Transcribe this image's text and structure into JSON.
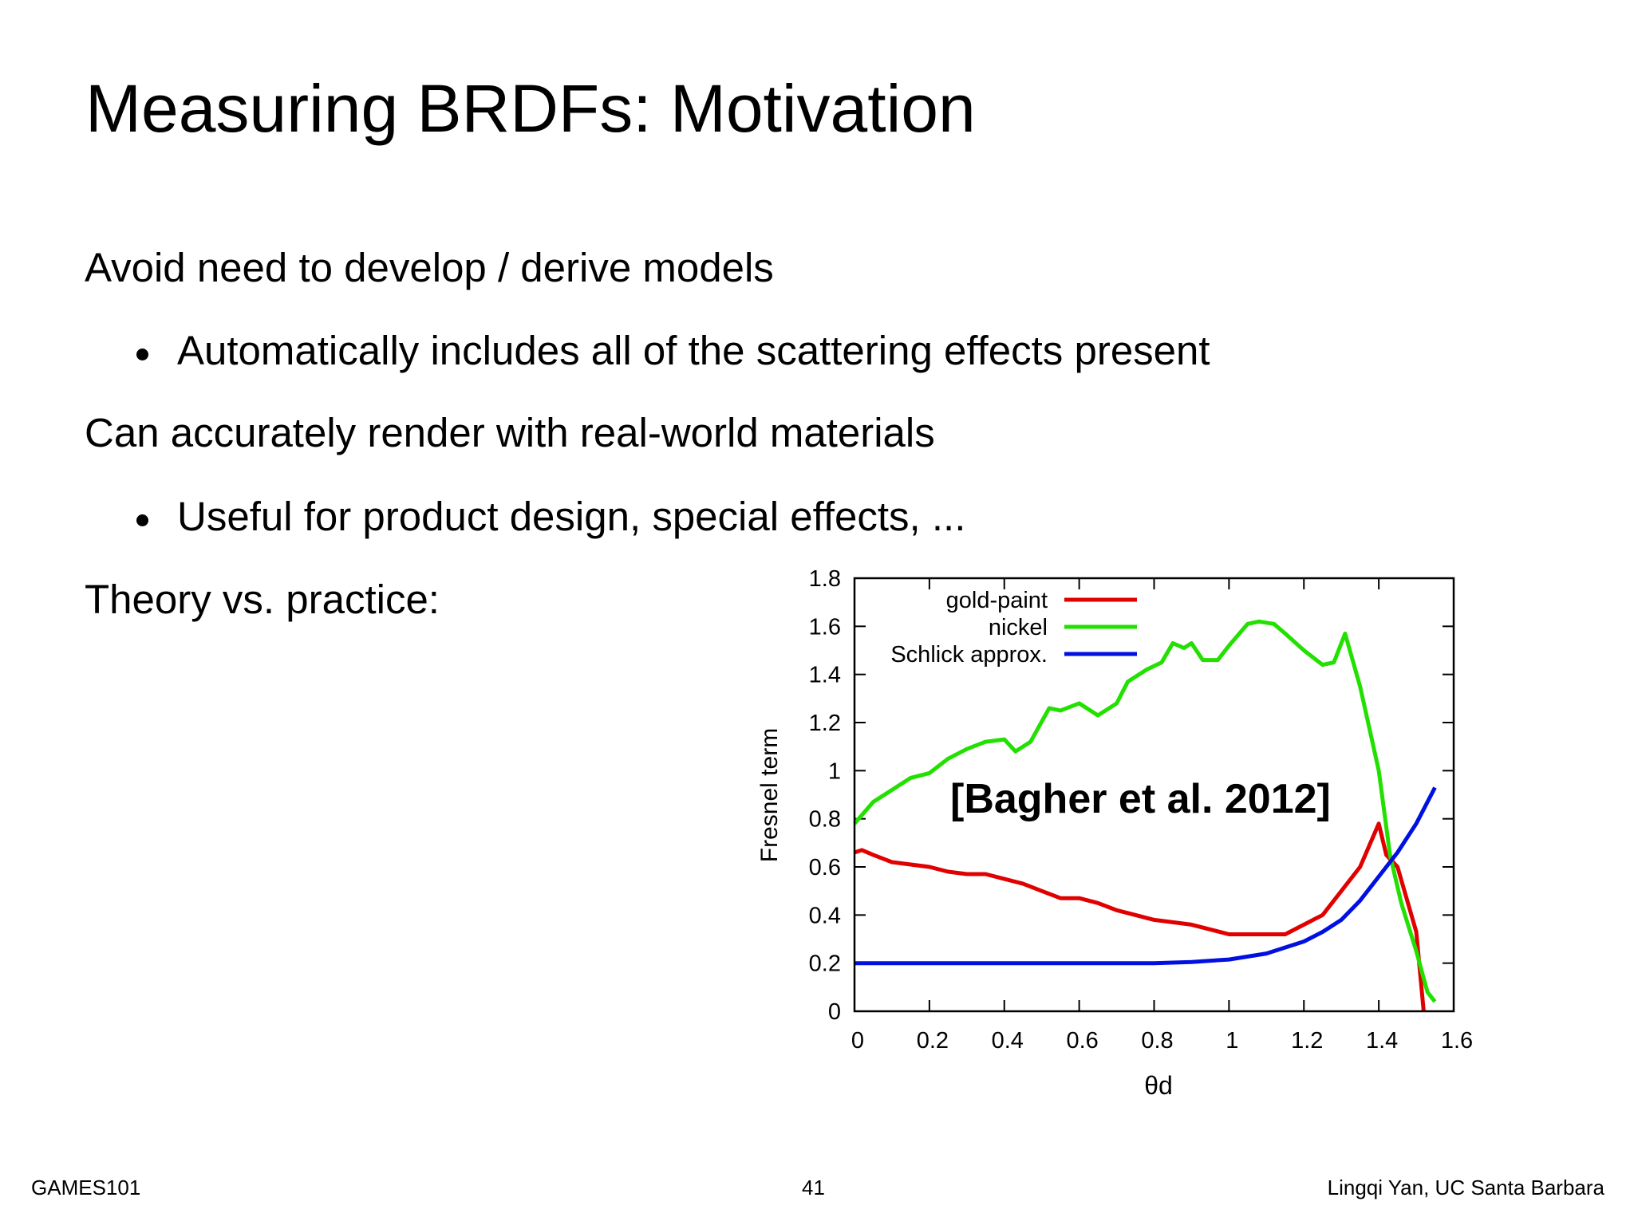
{
  "title": "Measuring BRDFs: Motivation",
  "points": [
    {
      "text": "Avoid need to develop / derive models",
      "sub": [
        "Automatically includes all of the scattering effects present"
      ]
    },
    {
      "text": "Can accurately render with real-world materials",
      "sub": [
        "Useful for product design, special effects, ..."
      ]
    },
    {
      "text": "Theory vs. practice:"
    }
  ],
  "footer": {
    "left": "GAMES101",
    "center": "41",
    "right": "Lingqi Yan, UC Santa Barbara"
  },
  "chart_data": {
    "type": "line",
    "xlabel": "θd",
    "ylabel": "Fresnel term",
    "annotation": "[Bagher et al. 2012]",
    "xlim": [
      0,
      1.6
    ],
    "ylim": [
      0,
      1.8
    ],
    "xticks": [
      0,
      0.2,
      0.4,
      0.6,
      0.8,
      1,
      1.2,
      1.4,
      1.6
    ],
    "yticks": [
      0,
      0.2,
      0.4,
      0.6,
      0.8,
      1,
      1.2,
      1.4,
      1.6,
      1.8
    ],
    "legend": "upper left",
    "series": [
      {
        "name": "gold-paint",
        "color": "#e00000",
        "x": [
          0,
          0.02,
          0.05,
          0.1,
          0.15,
          0.2,
          0.25,
          0.3,
          0.35,
          0.4,
          0.45,
          0.5,
          0.55,
          0.6,
          0.65,
          0.7,
          0.75,
          0.8,
          0.85,
          0.9,
          0.95,
          1.0,
          1.05,
          1.1,
          1.15,
          1.2,
          1.25,
          1.3,
          1.35,
          1.4,
          1.42,
          1.45,
          1.5,
          1.52
        ],
        "values": [
          0.66,
          0.67,
          0.65,
          0.62,
          0.61,
          0.6,
          0.58,
          0.57,
          0.57,
          0.55,
          0.53,
          0.5,
          0.47,
          0.47,
          0.45,
          0.42,
          0.4,
          0.38,
          0.37,
          0.36,
          0.34,
          0.32,
          0.32,
          0.32,
          0.32,
          0.36,
          0.4,
          0.5,
          0.6,
          0.78,
          0.65,
          0.6,
          0.33,
          0
        ]
      },
      {
        "name": "nickel",
        "color": "#22e000",
        "x": [
          0,
          0.05,
          0.1,
          0.15,
          0.2,
          0.25,
          0.3,
          0.35,
          0.4,
          0.43,
          0.47,
          0.52,
          0.55,
          0.6,
          0.65,
          0.7,
          0.73,
          0.78,
          0.82,
          0.85,
          0.88,
          0.9,
          0.93,
          0.97,
          1.0,
          1.05,
          1.08,
          1.12,
          1.15,
          1.2,
          1.25,
          1.28,
          1.31,
          1.35,
          1.4,
          1.43,
          1.46,
          1.5,
          1.53,
          1.55
        ],
        "values": [
          0.78,
          0.87,
          0.92,
          0.97,
          0.99,
          1.05,
          1.09,
          1.12,
          1.13,
          1.08,
          1.12,
          1.26,
          1.25,
          1.28,
          1.23,
          1.28,
          1.37,
          1.42,
          1.45,
          1.53,
          1.51,
          1.53,
          1.46,
          1.46,
          1.52,
          1.61,
          1.62,
          1.61,
          1.57,
          1.5,
          1.44,
          1.45,
          1.57,
          1.35,
          1.0,
          0.65,
          0.45,
          0.25,
          0.08,
          0.04
        ]
      },
      {
        "name": "Schlick approx.",
        "color": "#0010e0",
        "x": [
          0,
          0.2,
          0.4,
          0.6,
          0.8,
          0.9,
          1.0,
          1.1,
          1.2,
          1.25,
          1.3,
          1.35,
          1.4,
          1.45,
          1.5,
          1.55
        ],
        "values": [
          0.2,
          0.2,
          0.2,
          0.2,
          0.2,
          0.205,
          0.215,
          0.24,
          0.29,
          0.33,
          0.38,
          0.46,
          0.56,
          0.66,
          0.78,
          0.93
        ]
      }
    ]
  }
}
